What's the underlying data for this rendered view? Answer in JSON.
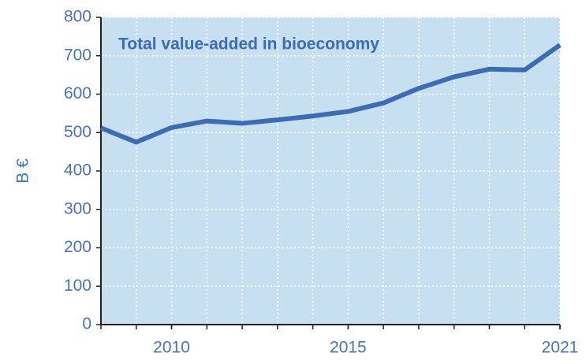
{
  "chart_data": {
    "type": "line",
    "title": "Total value-added in bioeconomy",
    "y_label": "B €",
    "x": [
      2008,
      2009,
      2010,
      2011,
      2012,
      2013,
      2014,
      2015,
      2016,
      2017,
      2018,
      2019,
      2020,
      2021
    ],
    "series": [
      {
        "name": "Total value-added in bioeconomy",
        "color": "#3d6cb3",
        "values": [
          512,
          475,
          513,
          530,
          524,
          533,
          543,
          555,
          577,
          615,
          645,
          665,
          663,
          728
        ]
      }
    ],
    "xlim": [
      2008,
      2021
    ],
    "xticks": [
      2010,
      2015,
      2021
    ],
    "ylim": [
      0,
      800
    ],
    "yticks": [
      0,
      100,
      200,
      300,
      400,
      500,
      600,
      700,
      800
    ],
    "grid": true,
    "background": "#c6e0f2"
  }
}
